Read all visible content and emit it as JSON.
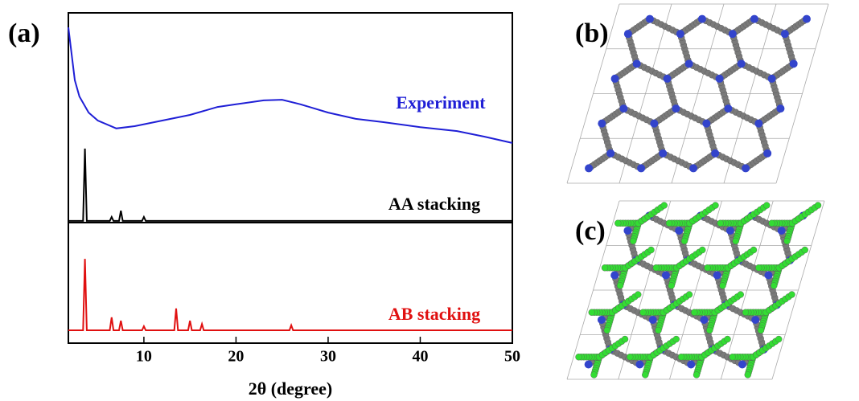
{
  "chart_data": {
    "type": "line",
    "panel_label": "(a)",
    "xlabel": "2θ (degree)",
    "xlim": [
      1.8,
      50
    ],
    "xticks": [
      10,
      20,
      30,
      40,
      50
    ],
    "ylim": [
      0,
      100
    ],
    "series": [
      {
        "name": "Experiment",
        "color": "#1f1fd6",
        "x": [
          1.8,
          2.5,
          3,
          4,
          5,
          7,
          9,
          12,
          15,
          18,
          20,
          23,
          25,
          27,
          30,
          33,
          36,
          40,
          44,
          47,
          50
        ],
        "values": [
          95.6,
          79.6,
          74.7,
          69.8,
          67.4,
          65,
          65.7,
          67.4,
          69.1,
          71.5,
          72.3,
          73.5,
          73.7,
          72.3,
          69.8,
          67.9,
          66.9,
          65.4,
          64.2,
          62.5,
          60.6
        ]
      },
      {
        "name": "AA stacking",
        "color": "#000000",
        "x": [
          1.8,
          3.4,
          3.6,
          3.8,
          6.3,
          6.5,
          6.7,
          7.3,
          7.5,
          7.7,
          9.8,
          10,
          10.2,
          50
        ],
        "values": [
          37,
          37,
          58.9,
          37,
          37,
          38.2,
          37,
          37,
          40.1,
          37,
          37,
          38.2,
          37,
          37
        ]
      },
      {
        "name": "AB stacking",
        "color": "#e01010",
        "x": [
          1.8,
          3.4,
          3.6,
          3.8,
          6.3,
          6.5,
          6.7,
          7.3,
          7.5,
          7.7,
          9.8,
          10,
          10.2,
          13.3,
          13.5,
          13.7,
          14.8,
          15,
          15.2,
          16.1,
          16.3,
          16.5,
          25.8,
          26,
          26.2,
          50
        ],
        "values": [
          3.9,
          3.9,
          25.5,
          3.9,
          3.9,
          7.8,
          3.9,
          3.9,
          6.8,
          3.9,
          3.9,
          5.1,
          3.9,
          3.9,
          10.5,
          3.9,
          3.9,
          6.8,
          3.9,
          3.9,
          5.8,
          3.9,
          3.9,
          5.4,
          3.9,
          3.9
        ]
      }
    ]
  },
  "structures": [
    {
      "label": "(b)"
    },
    {
      "label": "(c)"
    }
  ]
}
